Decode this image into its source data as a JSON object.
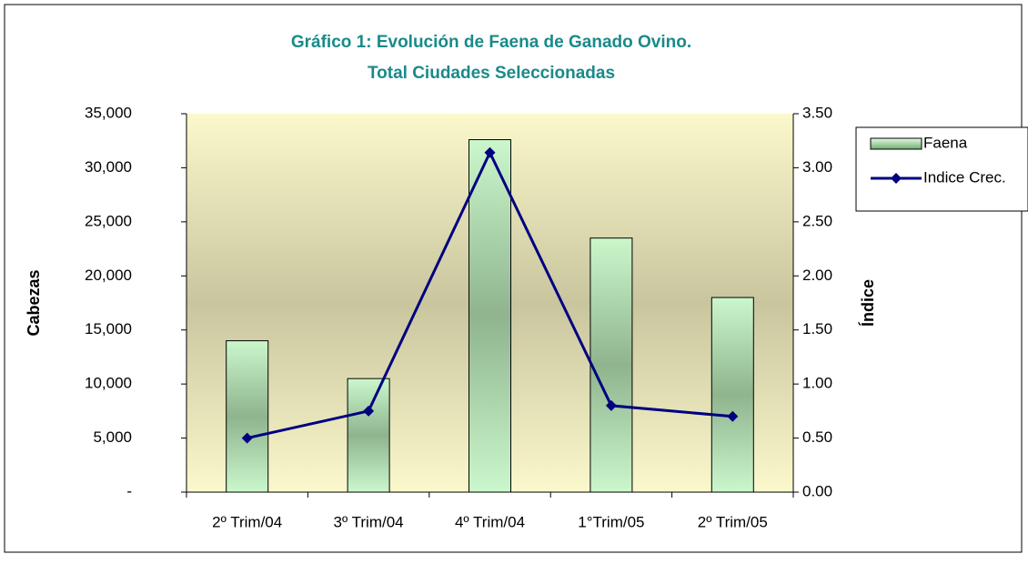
{
  "chart_data": {
    "type": "bar_line",
    "title": "Gráfico 1: Evolución de Faena de Ganado Ovino.",
    "subtitle": "Total Ciudades Seleccionadas",
    "ylabel": "Cabezas",
    "y2label": "Índice",
    "categories": [
      "2º Trim/04",
      "3º Trim/04",
      "4º Trim/04",
      "1°Trim/05",
      "2º Trim/05"
    ],
    "series": [
      {
        "name": "Faena",
        "type": "bar",
        "color": "#9fd4a0",
        "values": [
          14000,
          10500,
          32600,
          23500,
          18000
        ]
      },
      {
        "name": "Indice Crec.",
        "type": "line",
        "axis": "y2",
        "color": "#000080",
        "values": [
          0.5,
          0.75,
          3.14,
          0.8,
          0.7
        ]
      }
    ],
    "ylim": [
      0,
      35000
    ],
    "yticks": [
      {
        "value": 0,
        "label": "-"
      },
      {
        "value": 5000,
        "label": "5,000"
      },
      {
        "value": 10000,
        "label": "10,000"
      },
      {
        "value": 15000,
        "label": "15,000"
      },
      {
        "value": 20000,
        "label": "20,000"
      },
      {
        "value": 25000,
        "label": "25,000"
      },
      {
        "value": 30000,
        "label": "30,000"
      },
      {
        "value": 35000,
        "label": "35,000"
      }
    ],
    "y2lim": [
      0,
      3.5
    ],
    "y2ticks": [
      {
        "value": 0,
        "label": "0.00"
      },
      {
        "value": 0.5,
        "label": "0.50"
      },
      {
        "value": 1,
        "label": "1.00"
      },
      {
        "value": 1.5,
        "label": "1.50"
      },
      {
        "value": 2,
        "label": "2.00"
      },
      {
        "value": 2.5,
        "label": "2.50"
      },
      {
        "value": 3,
        "label": "3.00"
      },
      {
        "value": 3.5,
        "label": "3.50"
      }
    ],
    "legend": "right"
  }
}
